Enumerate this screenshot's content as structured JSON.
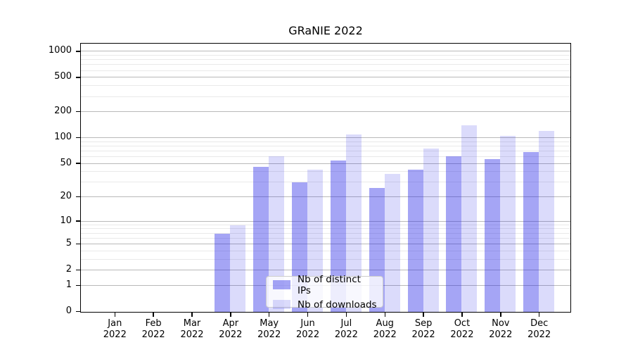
{
  "chart_data": {
    "type": "bar",
    "title": "GRaNIE 2022",
    "categories": [
      "Jan\n2022",
      "Feb\n2022",
      "Mar\n2022",
      "Apr\n2022",
      "May\n2022",
      "Jun\n2022",
      "Jul\n2022",
      "Aug\n2022",
      "Sep\n2022",
      "Oct\n2022",
      "Nov\n2022",
      "Dec\n2022"
    ],
    "series": [
      {
        "name": "Nb of distinct IPs",
        "color": "#2828e66b",
        "values": [
          0,
          0,
          0,
          7,
          46,
          30,
          55,
          26,
          43,
          61,
          57,
          68
        ]
      },
      {
        "name": "Nb of downloads",
        "color": "#2828e62b",
        "values": [
          0,
          0,
          0,
          9,
          61,
          43,
          110,
          38,
          75,
          140,
          105,
          120
        ]
      }
    ],
    "xlabel": "",
    "ylabel": "",
    "yscale": "log1p",
    "yticks": [
      0,
      1,
      2,
      5,
      10,
      20,
      50,
      100,
      200,
      500,
      1000
    ],
    "yticks_minor": [
      3,
      4,
      6,
      7,
      8,
      9,
      30,
      40,
      60,
      70,
      80,
      90,
      300,
      400,
      600,
      700,
      800,
      900
    ],
    "ylim": [
      0,
      1280
    ],
    "grid": true,
    "grid_major_color": "#b9b9b9",
    "grid_minor_color": "#e9e9e9",
    "legend_position": "lower center"
  }
}
